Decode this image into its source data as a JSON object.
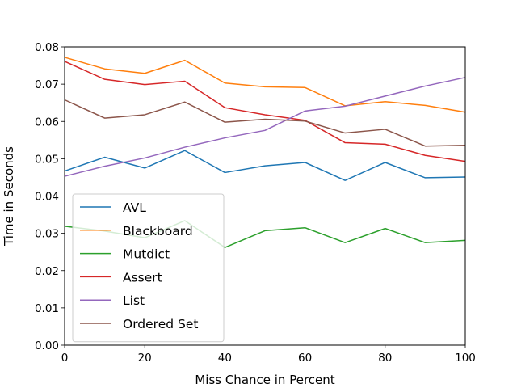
{
  "chart_data": {
    "type": "line",
    "title": "",
    "xlabel": "Miss Chance in Percent",
    "ylabel": "Time in Seconds",
    "xlim": [
      0,
      100
    ],
    "ylim": [
      0,
      0.08
    ],
    "x": [
      0,
      10,
      20,
      30,
      40,
      50,
      60,
      70,
      80,
      90,
      100
    ],
    "xticks": [
      "0",
      "20",
      "40",
      "60",
      "80",
      "100"
    ],
    "xtick_values": [
      0,
      20,
      40,
      60,
      80,
      100
    ],
    "yticks": [
      "0.00",
      "0.01",
      "0.02",
      "0.03",
      "0.04",
      "0.05",
      "0.06",
      "0.07",
      "0.08"
    ],
    "ytick_values": [
      0,
      0.01,
      0.02,
      0.03,
      0.04,
      0.05,
      0.06,
      0.07,
      0.08
    ],
    "grid": false,
    "legend_position": "lower-left",
    "series": [
      {
        "name": "AVL",
        "color": "#1f77b4",
        "values": [
          0.0467,
          0.0504,
          0.0475,
          0.0522,
          0.0463,
          0.0481,
          0.049,
          0.0442,
          0.049,
          0.0449,
          0.0451
        ]
      },
      {
        "name": "Blackboard",
        "color": "#ff7f0e",
        "values": [
          0.0772,
          0.0741,
          0.0729,
          0.0764,
          0.0703,
          0.0693,
          0.0691,
          0.0642,
          0.0653,
          0.0643,
          0.0625
        ]
      },
      {
        "name": "Mutdict",
        "color": "#2ca02c",
        "values": [
          0.0319,
          0.0306,
          0.0288,
          0.0334,
          0.0262,
          0.0307,
          0.0315,
          0.0275,
          0.0313,
          0.0275,
          0.0281
        ]
      },
      {
        "name": "Assert",
        "color": "#d62728",
        "values": [
          0.0761,
          0.0713,
          0.0699,
          0.0708,
          0.0637,
          0.0618,
          0.0603,
          0.0543,
          0.0539,
          0.0509,
          0.0493
        ]
      },
      {
        "name": "List",
        "color": "#9467bd",
        "values": [
          0.0453,
          0.048,
          0.0502,
          0.0531,
          0.0556,
          0.0576,
          0.0628,
          0.0641,
          0.0668,
          0.0695,
          0.0718
        ]
      },
      {
        "name": "Ordered Set",
        "color": "#8c564b",
        "values": [
          0.0658,
          0.0609,
          0.0618,
          0.0652,
          0.0598,
          0.0606,
          0.0601,
          0.0569,
          0.0579,
          0.0534,
          0.0536
        ]
      }
    ]
  }
}
